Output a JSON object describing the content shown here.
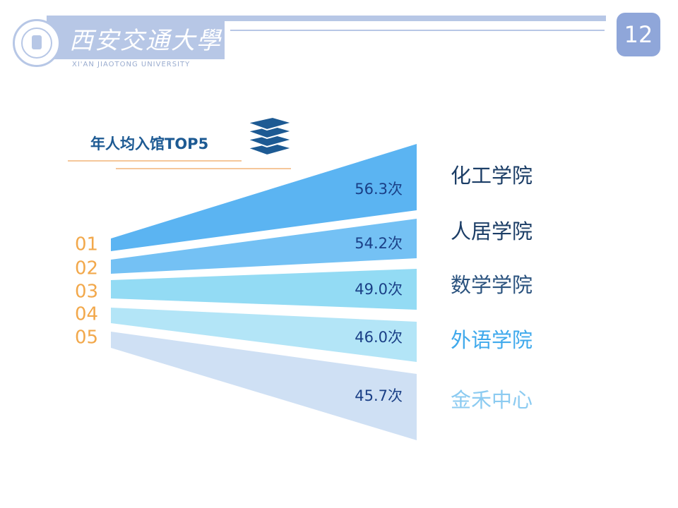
{
  "header": {
    "university_name": "西安交通大學",
    "university_name_en": "XI'AN JIAOTONG UNIVERSITY",
    "page_number": "12"
  },
  "colors": {
    "accent": "#b7c7e6",
    "badge": "#8fa6d9",
    "rank_text": "#f2a84b",
    "title_text": "#1d5a93",
    "value_text": "#1a3f86"
  },
  "icons": [
    "university-seal-icon",
    "books-icon"
  ],
  "chart_data": {
    "type": "bar",
    "title": "年人均入馆TOP5",
    "unit": "次",
    "ranks": [
      "01",
      "02",
      "03",
      "04",
      "05"
    ],
    "categories": [
      "化工学院",
      "人居学院",
      "数学学院",
      "外语学院",
      "金禾中心"
    ],
    "values": [
      56.3,
      54.2,
      49.0,
      46.0,
      45.7
    ],
    "value_labels": [
      "56.3次",
      "54.2次",
      "49.0次",
      "46.0次",
      "45.7次"
    ],
    "bar_colors": [
      "#5bb4f2",
      "#74c1f4",
      "#93dbf4",
      "#b3e5f7",
      "#cfe0f4"
    ],
    "label_colors": [
      "#1b3d66",
      "#1b3d66",
      "#2a527e",
      "#3fa9ec",
      "#8ccbf1"
    ]
  }
}
